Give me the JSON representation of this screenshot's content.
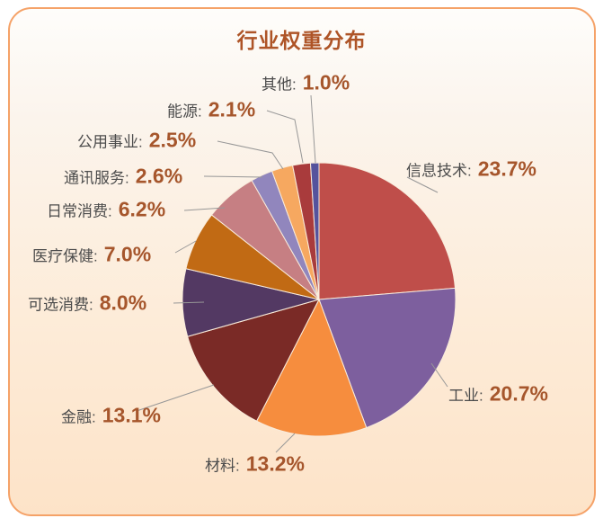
{
  "card": {
    "title": "行业权重分布"
  },
  "style": {
    "card_border": "#f5a268",
    "card_bg_top": "#fefdfb",
    "card_bg_bottom": "#fde3c8",
    "title_color": "#ae5427",
    "category_color": "#4c4c4c",
    "value_color": "#a6562c",
    "leader_line_color": "#979797",
    "slice_stroke": "#f9ecdc"
  },
  "chart_data": {
    "type": "pie",
    "title": "行业权重分布",
    "start_angle": "12-o-clock",
    "direction": "clockwise",
    "value_suffix": "%",
    "separator": ":",
    "slices": [
      {
        "name": "信息技术",
        "value": 23.7,
        "pct_label": "23.7%",
        "color": "#bf4e4a"
      },
      {
        "name": "工业",
        "value": 20.7,
        "pct_label": "20.7%",
        "color": "#7d5f9e"
      },
      {
        "name": "材料",
        "value": 13.2,
        "pct_label": "13.2%",
        "color": "#f68d3e"
      },
      {
        "name": "金融",
        "value": 13.1,
        "pct_label": "13.1%",
        "color": "#7a2a26"
      },
      {
        "name": "可选消费",
        "value": 8.0,
        "pct_label": "8.0%",
        "color": "#533963"
      },
      {
        "name": "医疗保健",
        "value": 7.0,
        "pct_label": "7.0%",
        "color": "#c16a14"
      },
      {
        "name": "日常消费",
        "value": 6.2,
        "pct_label": "6.2%",
        "color": "#c67f83"
      },
      {
        "name": "通讯服务",
        "value": 2.6,
        "pct_label": "2.6%",
        "color": "#9186bd"
      },
      {
        "name": "公用事业",
        "value": 2.5,
        "pct_label": "2.5%",
        "color": "#f6a860"
      },
      {
        "name": "能源",
        "value": 2.1,
        "pct_label": "2.1%",
        "color": "#a93b3c"
      },
      {
        "name": "其他",
        "value": 1.0,
        "pct_label": "1.0%",
        "color": "#55539d"
      }
    ]
  }
}
